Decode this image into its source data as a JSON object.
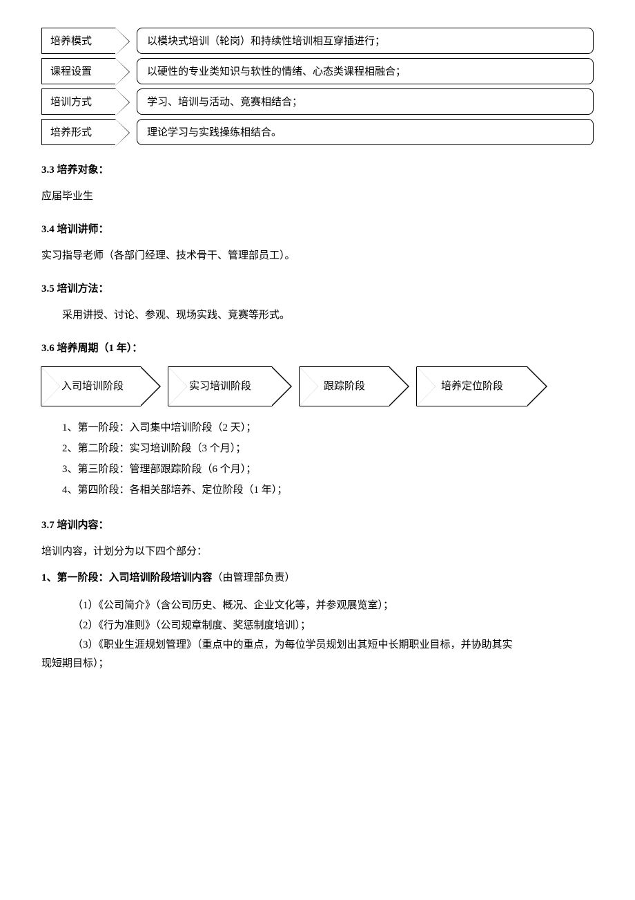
{
  "pentagon_rows": [
    {
      "label": "培养模式",
      "desc": "以模块式培训（轮岗）和持续性培训相互穿插进行；"
    },
    {
      "label": "课程设置",
      "desc": "以硬性的专业类知识与软性的情绪、心态类课程相融合；"
    },
    {
      "label": "培训方式",
      "desc": "学习、培训与活动、竞赛相结合；"
    },
    {
      "label": "培养形式",
      "desc": "理论学习与实践操练相结合。"
    }
  ],
  "s33": {
    "head": "3.3 培养对象：",
    "body": "应届毕业生"
  },
  "s34": {
    "head": "3.4 培训讲师：",
    "body": "实习指导老师（各部门经理、技术骨干、管理部员工）。"
  },
  "s35": {
    "head": "3.5 培训方法：",
    "body": "采用讲授、讨论、参观、现场实践、竞赛等形式。"
  },
  "s36": {
    "head": "3.6 培养周期（1 年）：",
    "chevrons": [
      "入司培训阶段",
      "实习培训阶段",
      "跟踪阶段",
      "培养定位阶段"
    ],
    "stages": [
      "1、第一阶段：入司集中培训阶段（2 天）；",
      "2、第二阶段：实习培训阶段（3 个月）；",
      "3、第三阶段：管理部跟踪阶段（6 个月）；",
      "4、第四阶段：各相关部培养、定位阶段（1 年）；"
    ]
  },
  "s37": {
    "head": "3.7 培训内容：",
    "intro": "培训内容，计划分为以下四个部分：",
    "phase1_head_bold": "1、第一阶段：入司培训阶段培训内容",
    "phase1_head_tail": "（由管理部负责）",
    "items": [
      "（1）《公司简介》（含公司历史、概况、企业文化等，并参观展览室）；",
      "（2）《行为准则》（公司规章制度、奖惩制度培训）；",
      "（3）《职业生涯规划管理》（重点中的重点，为每位学员规划出其短中长期职业目标，并协助其实"
    ],
    "tail": "现短期目标）；"
  }
}
